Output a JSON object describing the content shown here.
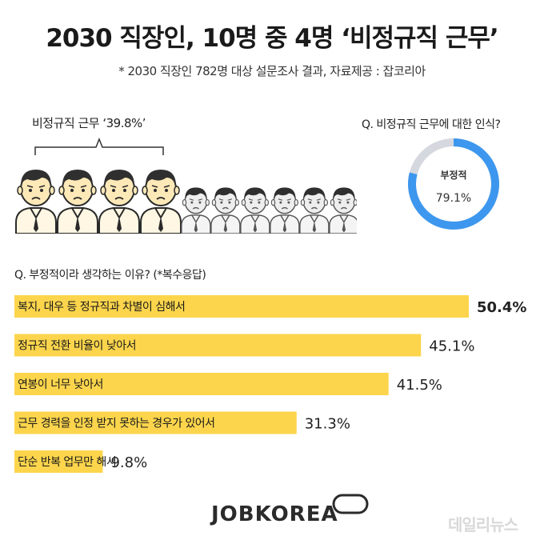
{
  "title": "2030 직장인, 10명 중 4명 ‘비정규직 근무’",
  "subtitle": "* 2030 직장인 782명 대상 설문조사 결과, 자료제공 : 잡코리아",
  "workers": {
    "label": "비정규직 근무 ‘39.8%’",
    "total": 10,
    "highlighted": 4,
    "highlight_color": "#fde9b8"
  },
  "donut": {
    "question": "Q. 비정규직 근무에 대한 인식?",
    "label": "부정적",
    "value_text": "79.1%",
    "value": 79.1,
    "color": "#3d97ee",
    "rest_color": "#d5d8de"
  },
  "bar_question": "Q. 부정적이라 생각하는 이유?  (*복수응답)",
  "chart_data": {
    "type": "bar",
    "orientation": "horizontal",
    "categories": [
      "복지, 대우 등 정규직과 차별이 심해서",
      "정규직 전환 비율이 낮아서",
      "연봉이 너무 낮아서",
      "근무 경력을 인정 받지 못하는 경우가 있어서",
      "단순 반복 업무만 해서"
    ],
    "values": [
      50.4,
      45.1,
      41.5,
      31.3,
      9.8
    ],
    "value_labels": [
      "50.4%",
      "45.1%",
      "41.5%",
      "31.3%",
      "9.8%"
    ],
    "bar_color": "#fcd54c"
  },
  "logo": "JOBKOREA",
  "watermark": "데일리뉴스"
}
